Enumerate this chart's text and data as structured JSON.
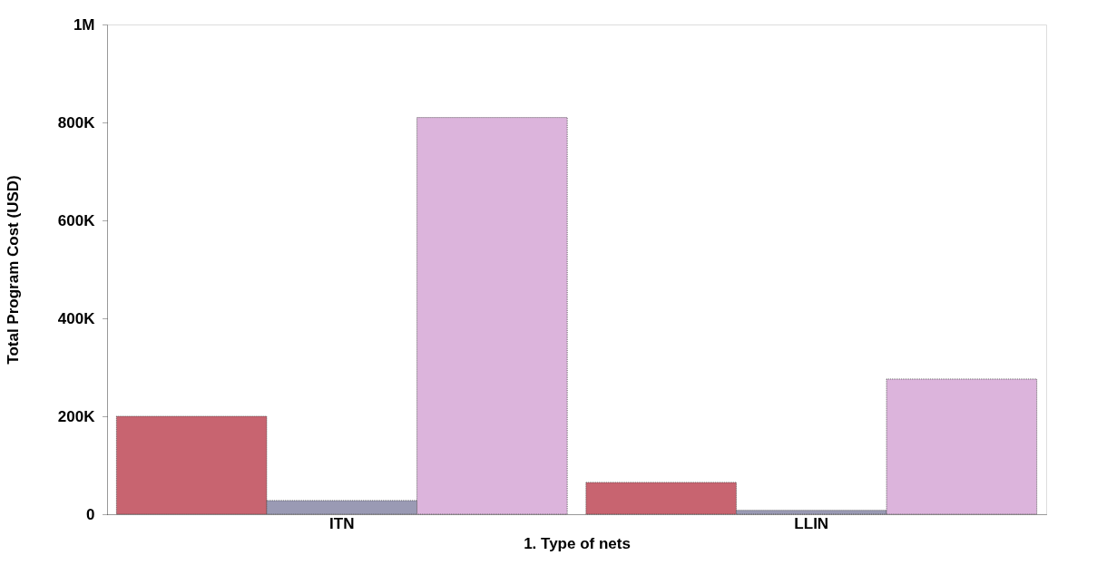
{
  "chart_data": {
    "type": "bar",
    "xlabel": "1. Type of nets",
    "ylabel": "Total Program Cost (USD)",
    "categories": [
      "ITN",
      "LLIN"
    ],
    "series": [
      {
        "color": "#c86470",
        "values": [
          200000,
          65000
        ]
      },
      {
        "color": "#9a9ab4",
        "values": [
          28000,
          8000
        ]
      },
      {
        "color": "#dcb4dc",
        "values": [
          810000,
          276000
        ]
      }
    ],
    "ylim": [
      0,
      1000000
    ],
    "yticks": [
      {
        "value": 0,
        "label": "0"
      },
      {
        "value": 200000,
        "label": "200K"
      },
      {
        "value": 400000,
        "label": "400K"
      },
      {
        "value": 600000,
        "label": "600K"
      },
      {
        "value": 800000,
        "label": "800K"
      },
      {
        "value": 1000000,
        "label": "1M"
      }
    ],
    "grid": false,
    "legend": false
  }
}
